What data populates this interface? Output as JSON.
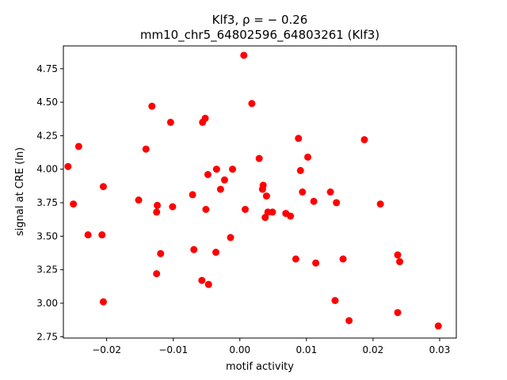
{
  "chart_data": {
    "type": "scatter",
    "title_line1": "Klf3, ρ = − 0.26",
    "title_line2": "mm10_chr5_64802596_64803261 (Klf3)",
    "xlabel": "motif activity",
    "ylabel": "signal at CRE (ln)",
    "xlim": [
      -0.0265,
      0.0325
    ],
    "ylim": [
      2.74,
      4.92
    ],
    "xticks": [
      -0.02,
      -0.01,
      0.0,
      0.01,
      0.02,
      0.03
    ],
    "xtick_labels": [
      "−0.02",
      "−0.01",
      "0.00",
      "0.01",
      "0.02",
      "0.03"
    ],
    "yticks": [
      2.75,
      3.0,
      3.25,
      3.5,
      3.75,
      4.0,
      4.25,
      4.5,
      4.75
    ],
    "ytick_labels": [
      "2.75",
      "3.00",
      "3.25",
      "3.50",
      "3.75",
      "4.00",
      "4.25",
      "4.50",
      "4.75"
    ],
    "marker_color": "#ff0000",
    "grid": false,
    "points": [
      {
        "x": -0.0258,
        "y": 4.02
      },
      {
        "x": -0.025,
        "y": 3.74
      },
      {
        "x": -0.0242,
        "y": 4.17
      },
      {
        "x": -0.0228,
        "y": 3.51
      },
      {
        "x": -0.0207,
        "y": 3.51
      },
      {
        "x": -0.0205,
        "y": 3.87
      },
      {
        "x": -0.0205,
        "y": 3.01
      },
      {
        "x": -0.0152,
        "y": 3.77
      },
      {
        "x": -0.0141,
        "y": 4.15
      },
      {
        "x": -0.0132,
        "y": 4.47
      },
      {
        "x": -0.0124,
        "y": 3.73
      },
      {
        "x": -0.0125,
        "y": 3.68
      },
      {
        "x": -0.0125,
        "y": 3.22
      },
      {
        "x": -0.0119,
        "y": 3.37
      },
      {
        "x": -0.0104,
        "y": 4.35
      },
      {
        "x": -0.0101,
        "y": 3.72
      },
      {
        "x": -0.0071,
        "y": 3.81
      },
      {
        "x": -0.0069,
        "y": 3.4
      },
      {
        "x": -0.0057,
        "y": 3.17
      },
      {
        "x": -0.0056,
        "y": 4.35
      },
      {
        "x": -0.0052,
        "y": 4.38
      },
      {
        "x": -0.0051,
        "y": 3.7
      },
      {
        "x": -0.0048,
        "y": 3.96
      },
      {
        "x": -0.0047,
        "y": 3.14
      },
      {
        "x": -0.0036,
        "y": 3.38
      },
      {
        "x": -0.0035,
        "y": 4.0
      },
      {
        "x": -0.0029,
        "y": 3.85
      },
      {
        "x": -0.0023,
        "y": 3.92
      },
      {
        "x": -0.0014,
        "y": 3.49
      },
      {
        "x": -0.0011,
        "y": 4.0
      },
      {
        "x": 0.0006,
        "y": 4.85
      },
      {
        "x": 0.0008,
        "y": 3.7
      },
      {
        "x": 0.0018,
        "y": 4.49
      },
      {
        "x": 0.0029,
        "y": 4.08
      },
      {
        "x": 0.0034,
        "y": 3.85
      },
      {
        "x": 0.0035,
        "y": 3.88
      },
      {
        "x": 0.0038,
        "y": 3.64
      },
      {
        "x": 0.004,
        "y": 3.8
      },
      {
        "x": 0.0042,
        "y": 3.68
      },
      {
        "x": 0.0049,
        "y": 3.68
      },
      {
        "x": 0.0069,
        "y": 3.67
      },
      {
        "x": 0.0076,
        "y": 3.65
      },
      {
        "x": 0.0084,
        "y": 3.33
      },
      {
        "x": 0.0088,
        "y": 4.23
      },
      {
        "x": 0.0091,
        "y": 3.99
      },
      {
        "x": 0.0094,
        "y": 3.83
      },
      {
        "x": 0.0102,
        "y": 4.09
      },
      {
        "x": 0.0111,
        "y": 3.76
      },
      {
        "x": 0.0114,
        "y": 3.3
      },
      {
        "x": 0.0136,
        "y": 3.83
      },
      {
        "x": 0.0143,
        "y": 3.02
      },
      {
        "x": 0.0145,
        "y": 3.75
      },
      {
        "x": 0.0155,
        "y": 3.33
      },
      {
        "x": 0.0164,
        "y": 2.87
      },
      {
        "x": 0.0187,
        "y": 4.22
      },
      {
        "x": 0.0211,
        "y": 3.74
      },
      {
        "x": 0.0237,
        "y": 3.36
      },
      {
        "x": 0.0237,
        "y": 2.93
      },
      {
        "x": 0.024,
        "y": 3.31
      },
      {
        "x": 0.0298,
        "y": 2.83
      }
    ]
  }
}
